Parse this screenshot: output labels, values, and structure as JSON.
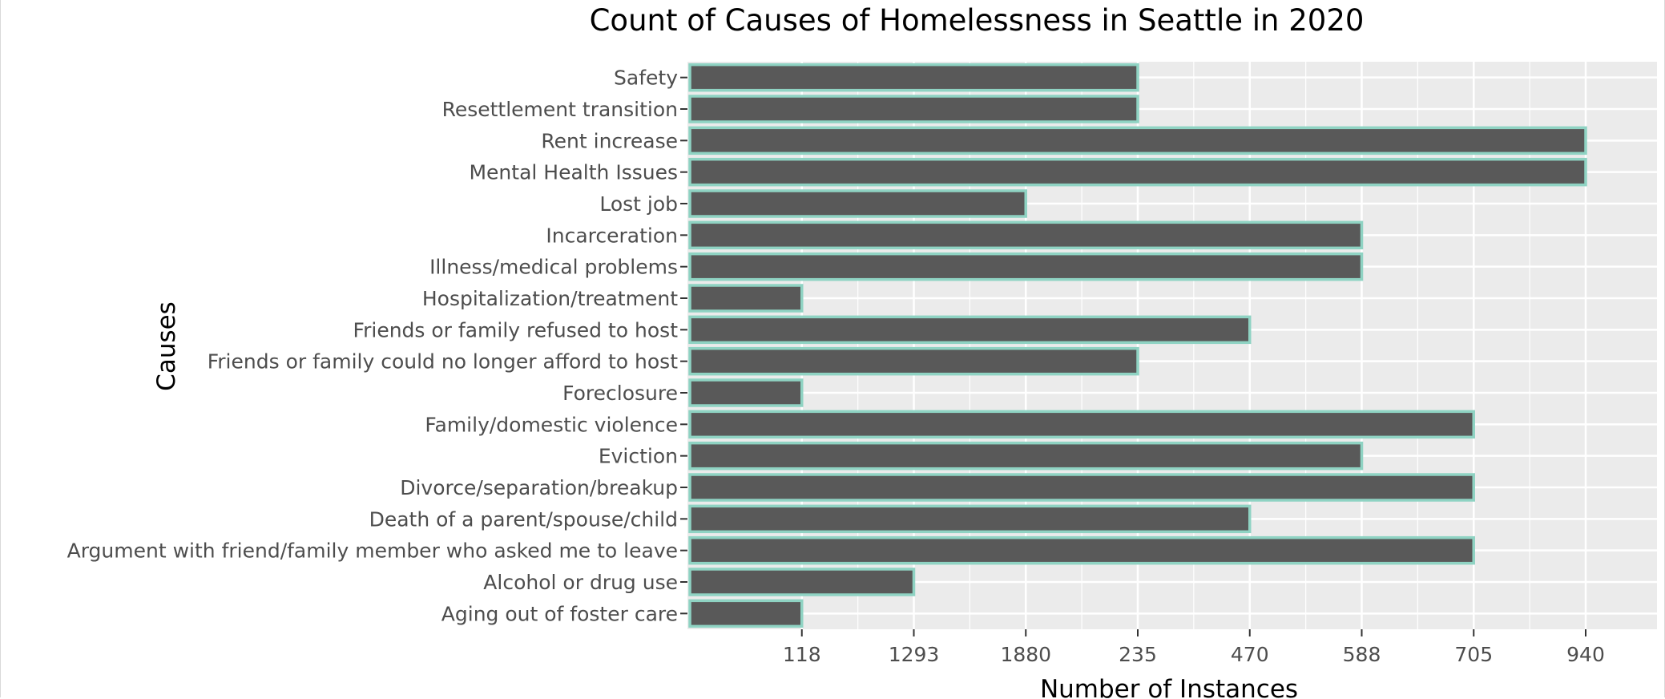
{
  "chart_data": {
    "type": "bar",
    "orientation": "horizontal",
    "title": "Count of Causes of Homelessness in Seattle in 2020",
    "xlabel": "Number of Instances",
    "ylabel": "Causes",
    "x_tick_labels": [
      "118",
      "1293",
      "1880",
      "235",
      "470",
      "588",
      "705",
      "940"
    ],
    "x_axis_note": "categorical axis: tick labels are the distinct counts in the order shown",
    "categories": [
      "Safety",
      "Resettlement transition",
      "Rent increase",
      "Mental Health Issues",
      "Lost job",
      "Incarceration",
      "Illness/medical problems",
      "Hospitalization/treatment",
      "Friends or family refused to host",
      "Friends or family could no longer afford to host",
      "Foreclosure",
      "Family/domestic violence",
      "Eviction",
      "Divorce/separation/breakup",
      "Death of a parent/spouse/child",
      "Argument with friend/family member who asked me to leave",
      "Alcohol or drug use",
      "Aging out of foster care"
    ],
    "values": [
      "235",
      "235",
      "940",
      "940",
      "1880",
      "588",
      "588",
      "118",
      "470",
      "235",
      "118",
      "705",
      "588",
      "705",
      "470",
      "705",
      "1293",
      "118"
    ],
    "grid": true,
    "legend": "none",
    "colors": {
      "bar_fill": "#595959",
      "bar_outline": "#8fd3c3",
      "panel_bg": "#ebebeb",
      "grid": "#ffffff",
      "text": "#4d4d4d",
      "title": "#000000"
    }
  }
}
